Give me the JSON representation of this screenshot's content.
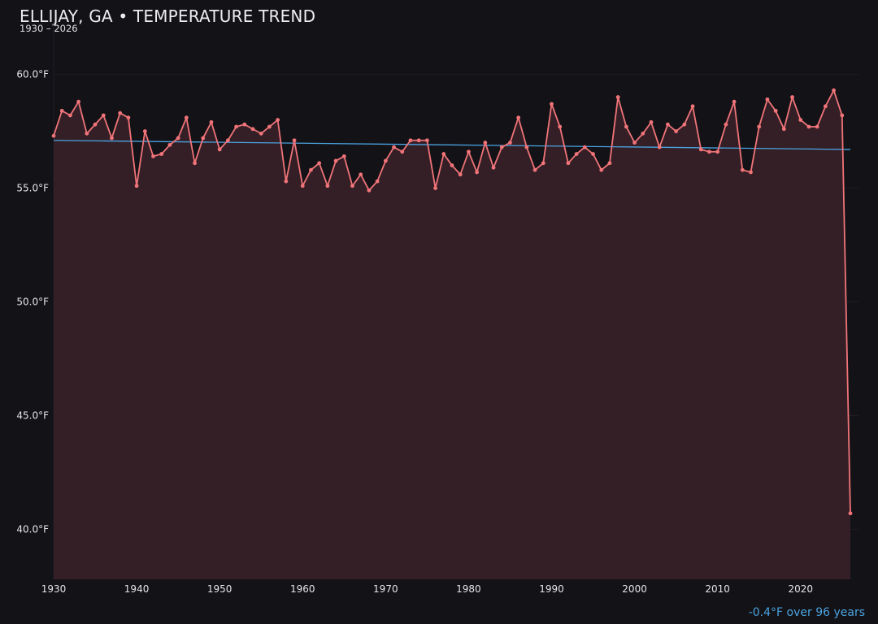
{
  "chart_data": {
    "type": "line",
    "title": "ELLIJAY, GA • TEMPERATURE TREND",
    "subtitle": "1930 – 2026",
    "trend_note": "-0.4°F over 96 years",
    "xlabel": "",
    "ylabel": "",
    "xlim": [
      1930,
      2026
    ],
    "ylim": [
      37.8,
      62.2
    ],
    "x_ticks": [
      1930,
      1940,
      1950,
      1960,
      1970,
      1980,
      1990,
      2000,
      2010,
      2020
    ],
    "y_ticks": [
      40.0,
      45.0,
      50.0,
      55.0,
      60.0
    ],
    "y_tick_labels": [
      "40.0°F",
      "45.0°F",
      "50.0°F",
      "55.0°F",
      "60.0°F"
    ],
    "grid": true,
    "legend": "none",
    "colors": {
      "background": "#131217",
      "series": "#f07478",
      "fill": "#351f27",
      "trend": "#4aa3e0",
      "grid": "#221c22"
    },
    "series": [
      {
        "x": [
          1930,
          1931,
          1932,
          1933,
          1934,
          1935,
          1936,
          1937,
          1938,
          1939,
          1940,
          1941,
          1942,
          1943,
          1944,
          1945,
          1946,
          1947,
          1948,
          1949,
          1950,
          1951,
          1952,
          1953,
          1954,
          1955,
          1956,
          1957,
          1958,
          1959,
          1960,
          1961,
          1962,
          1963,
          1964,
          1965,
          1966,
          1967,
          1968,
          1969,
          1970,
          1971,
          1972,
          1973,
          1974,
          1975,
          1976,
          1977,
          1978,
          1979,
          1980,
          1981,
          1982,
          1983,
          1984,
          1985,
          1986,
          1987,
          1988,
          1989,
          1990,
          1991,
          1992,
          1993,
          1994,
          1995,
          1996,
          1997,
          1998,
          1999,
          2000,
          2001,
          2002,
          2003,
          2004,
          2005,
          2006,
          2007,
          2008,
          2009,
          2010,
          2011,
          2012,
          2013,
          2014,
          2015,
          2016,
          2017,
          2018,
          2019,
          2020,
          2021,
          2022,
          2023,
          2024,
          2025,
          2026
        ],
        "values": [
          57.3,
          58.4,
          58.2,
          58.8,
          57.4,
          57.8,
          58.2,
          57.2,
          58.3,
          58.1,
          55.1,
          57.5,
          56.4,
          56.5,
          56.9,
          57.2,
          58.1,
          56.1,
          57.2,
          57.9,
          56.7,
          57.1,
          57.7,
          57.8,
          57.6,
          57.4,
          57.7,
          58.0,
          55.3,
          57.1,
          55.1,
          55.8,
          56.1,
          55.1,
          56.2,
          56.4,
          55.1,
          55.6,
          54.9,
          55.3,
          56.2,
          56.8,
          56.6,
          57.1,
          57.1,
          57.1,
          55.0,
          56.5,
          56.0,
          55.6,
          56.6,
          55.7,
          57.0,
          55.9,
          56.8,
          57.0,
          58.1,
          56.8,
          55.8,
          56.1,
          58.7,
          57.7,
          56.1,
          56.5,
          56.8,
          56.5,
          55.8,
          56.1,
          59.0,
          57.7,
          57.0,
          57.4,
          57.9,
          56.8,
          57.8,
          57.5,
          57.8,
          58.6,
          56.7,
          56.6,
          56.6,
          57.8,
          58.8,
          55.8,
          55.7,
          57.7,
          58.9,
          58.4,
          57.6,
          59.0,
          58.0,
          57.7,
          57.7,
          58.6,
          59.3,
          58.2,
          40.7
        ]
      }
    ],
    "trend_line": {
      "x": [
        1930,
        2026
      ],
      "values": [
        57.1,
        56.7
      ]
    }
  }
}
